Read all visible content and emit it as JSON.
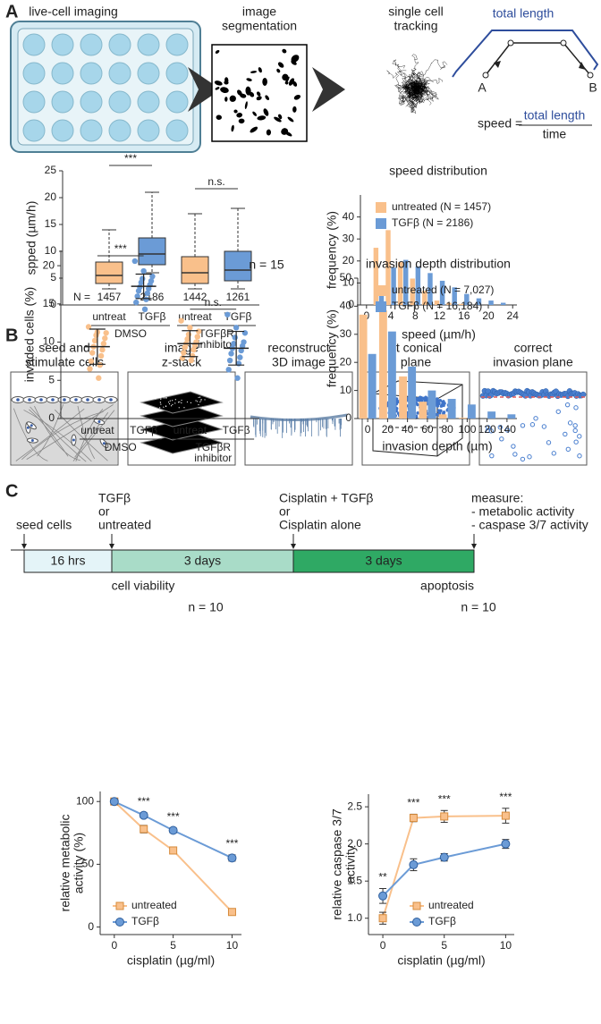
{
  "panel_a": {
    "label": "A",
    "steps": [
      [
        "live-cell imaging"
      ],
      [
        "image",
        "segmentation"
      ],
      [
        "single cell",
        "tracking"
      ]
    ],
    "diagram": {
      "total_length": "total length",
      "start": "A",
      "end": "B",
      "speed": "speed =",
      "numerator": "total length",
      "denominator": "time"
    }
  },
  "panel_b": {
    "label": "B",
    "steps": [
      [
        "seed and",
        "stimulate cells"
      ],
      [
        "image",
        "z-stack"
      ],
      [
        "reconstruct",
        "3D image"
      ],
      [
        "fit conical",
        "plane"
      ],
      [
        "correct",
        "invasion plane"
      ]
    ]
  },
  "panel_c": {
    "label": "C",
    "events": [
      [
        "seed cells"
      ],
      [
        "TGFβ",
        "or",
        "untreated"
      ],
      [
        "Cisplatin + TGFβ",
        "or",
        "Cisplatin alone"
      ],
      [
        "measure:",
        "- metabolic activity",
        "- caspase 3/7 activity"
      ]
    ],
    "phases": [
      "16 hrs",
      "3 days",
      "3 days"
    ]
  },
  "chart_data": [
    {
      "type": "box",
      "ylabel": "spped (µm/h)",
      "ylim": [
        0,
        25
      ],
      "yticks": [
        0,
        5,
        10,
        15,
        20,
        25
      ],
      "categories": [
        "untreat",
        "TGFβ",
        "untreat",
        "TGFβ"
      ],
      "groups": [
        [
          "DMSO"
        ],
        [
          "TGFβR",
          "inhibitor"
        ]
      ],
      "count_label": "N =",
      "counts": [
        1457,
        2186,
        1442,
        1261
      ],
      "boxes": [
        {
          "color": "#f9c08b",
          "whisker_low": 3,
          "q1": 4,
          "median": 5.5,
          "q3": 8,
          "whisker_high": 14
        },
        {
          "color": "#6b9bd6",
          "whisker_low": 6,
          "q1": 7.5,
          "median": 9.5,
          "q3": 12.5,
          "whisker_high": 21
        },
        {
          "color": "#f9c08b",
          "whisker_low": 3,
          "q1": 4,
          "median": 6,
          "q3": 9,
          "whisker_high": 17
        },
        {
          "color": "#6b9bd6",
          "whisker_low": 3,
          "q1": 4.5,
          "median": 6.5,
          "q3": 10,
          "whisker_high": 18
        }
      ],
      "significance": [
        "***",
        "n.s."
      ]
    },
    {
      "type": "grouped_bar",
      "title": "speed distribution",
      "xlabel": "speed (µm/h)",
      "ylabel": "frequency (%)",
      "xlim": [
        -1,
        24.7
      ],
      "xticks": [
        0,
        4,
        8,
        12,
        16,
        20,
        24
      ],
      "ylim": [
        0,
        50
      ],
      "yticks": [
        0,
        10,
        20,
        30,
        40
      ],
      "x": [
        2,
        4,
        6,
        8,
        10,
        12,
        14,
        16,
        18,
        20,
        22
      ],
      "series": [
        {
          "name": "untreated (N = 1457)",
          "color": "#f9c08b",
          "values": [
            26,
            34,
            19.5,
            12,
            6.5,
            2,
            1,
            0.5,
            0,
            0,
            0
          ]
        },
        {
          "name": "TGFβ (N = 2186)",
          "color": "#6b9bd6",
          "values": [
            4.5,
            17,
            20.5,
            17.5,
            14.5,
            11,
            8,
            5,
            3,
            2,
            1
          ]
        }
      ],
      "legend": "upper right"
    },
    {
      "type": "dot",
      "title": "n = 15",
      "ylabel": "invaded cells (%)",
      "ylim": [
        0,
        22
      ],
      "yticks": [
        0,
        5,
        10,
        15,
        20
      ],
      "categories": [
        "untreat",
        "TGFβ",
        "untreat",
        "TGFβ"
      ],
      "groups": [
        [
          "DMSO"
        ],
        [
          "TGFβR",
          "inhibitor"
        ]
      ],
      "colors": [
        "#f9c08b",
        "#6b9bd6",
        "#f9c08b",
        "#6b9bd6"
      ],
      "points": [
        [
          12.0,
          11.3,
          11.2,
          10.9,
          10.5,
          10.2,
          9.8,
          9.4,
          9.0,
          8.6,
          8.2,
          7.5,
          7.0,
          6.5,
          5.3
        ],
        [
          20.6,
          19.3,
          18.6,
          18.3,
          18.0,
          17.8,
          17.5,
          17.2,
          17.0,
          16.7,
          16.4,
          16.0,
          15.6,
          15.2,
          14.3
        ],
        [
          12.8,
          11.9,
          11.4,
          11.0,
          10.7,
          10.4,
          10.0,
          9.8,
          9.6,
          9.3,
          9.0,
          8.6,
          8.2,
          7.9,
          7.6
        ],
        [
          13.6,
          11.9,
          11.2,
          10.6,
          10.0,
          9.8,
          9.5,
          9.2,
          8.9,
          8.5,
          8.0,
          7.6,
          7.2,
          6.4,
          5.3
        ]
      ],
      "center": [
        9.4,
        17.3,
        9.8,
        9.2
      ],
      "error": [
        2.3,
        1.6,
        1.7,
        2.2
      ],
      "significance": [
        "***",
        "n.s."
      ]
    },
    {
      "type": "grouped_bar",
      "title": "invasion depth distribution",
      "xlabel": "invasion depth (µm)",
      "ylabel": "frequency (%)",
      "xlim": [
        -10,
        150
      ],
      "xticks": [
        0,
        20,
        40,
        60,
        80,
        100,
        120,
        140
      ],
      "ylim": [
        0,
        50
      ],
      "yticks": [
        0,
        10,
        20,
        30,
        40,
        50
      ],
      "x": [
        0,
        20,
        40,
        60,
        80,
        100,
        120,
        140
      ],
      "series": [
        {
          "name": "untreated (N = 7,027)",
          "color": "#f9c08b",
          "values": [
            37,
            38.5,
            15,
            6,
            1.5,
            0.3,
            0,
            0
          ]
        },
        {
          "name": "TGFβ (N = 16,184)",
          "color": "#6b9bd6",
          "values": [
            23,
            31,
            18.5,
            10,
            7,
            5,
            2.5,
            1.5
          ]
        }
      ],
      "legend": "upper right"
    },
    {
      "type": "line",
      "title": "cell viability",
      "subtitle": "n = 10",
      "xlabel": "cisplatin (µg/ml)",
      "ylabel": [
        "relative metabolic",
        "activity (%)"
      ],
      "xlim": [
        -1.2,
        10.8
      ],
      "xticks": [
        0,
        5,
        10
      ],
      "ylim": [
        -6,
        108
      ],
      "yticks": [
        0,
        50,
        100
      ],
      "x": [
        0,
        2.5,
        5,
        10
      ],
      "series": [
        {
          "name": "untreated",
          "color": "#f9c08b",
          "marker": "square",
          "values": [
            100,
            78,
            61,
            12
          ],
          "errors": [
            2,
            3,
            2,
            2
          ]
        },
        {
          "name": "TGFβ",
          "color": "#6b9bd6",
          "marker": "circle",
          "values": [
            100,
            89,
            77,
            55
          ],
          "errors": [
            2,
            2,
            2,
            2.5
          ]
        }
      ],
      "significance": [
        null,
        "***",
        "***",
        "***"
      ],
      "legend": "lower left"
    },
    {
      "type": "line",
      "title": "apoptosis",
      "subtitle": "n = 10",
      "xlabel": "cisplatin (µg/ml)",
      "ylabel": [
        "relative caspase 3/7",
        "activity"
      ],
      "xlim": [
        -1.17,
        10.7
      ],
      "xticks": [
        0,
        5,
        10
      ],
      "ylim": [
        0.78,
        2.67
      ],
      "yticks": [
        {
          "value": 1,
          "label": "1.0"
        },
        1.5,
        {
          "value": 2,
          "label": "2.0"
        },
        2.5
      ],
      "x": [
        0,
        2.5,
        5,
        10
      ],
      "series": [
        {
          "name": "untreated",
          "color": "#f9c08b",
          "marker": "square",
          "values": [
            1.0,
            2.35,
            2.37,
            2.38
          ],
          "errors": [
            0.08,
            0.05,
            0.08,
            0.1
          ]
        },
        {
          "name": "TGFβ",
          "color": "#6b9bd6",
          "marker": "circle",
          "values": [
            1.3,
            1.72,
            1.82,
            2.0
          ],
          "errors": [
            0.1,
            0.08,
            0.05,
            0.06
          ]
        }
      ],
      "significance": [
        "**",
        "***",
        "***",
        "***"
      ],
      "legend": "lower right"
    }
  ]
}
